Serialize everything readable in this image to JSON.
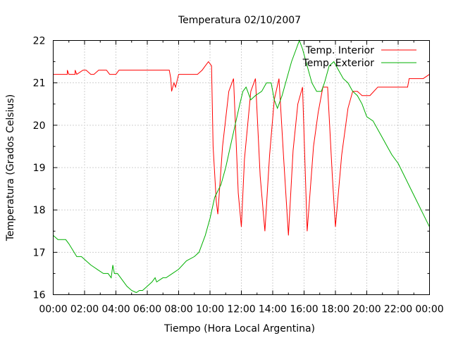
{
  "chart_data": {
    "type": "line",
    "title": "Temperatura 02/10/2007",
    "xlabel": "Tiempo (Hora Local Argentina)",
    "ylabel": "Temperatura (Grados Celsius)",
    "xlim": [
      0,
      24
    ],
    "ylim": [
      16,
      22
    ],
    "xtick_labels": [
      "00:00",
      "02:00",
      "04:00",
      "06:00",
      "08:00",
      "10:00",
      "12:00",
      "14:00",
      "16:00",
      "18:00",
      "20:00",
      "22:00",
      "00:00"
    ],
    "ytick_labels": [
      "16",
      "17",
      "18",
      "19",
      "20",
      "21",
      "22"
    ],
    "grid": true,
    "legend_position": "top-right",
    "series": [
      {
        "name": "Temp. Interior",
        "color": "#ff0000",
        "x": [
          0,
          0.9,
          0.9,
          1.0,
          1.4,
          1.4,
          1.5,
          1.9,
          2.1,
          2.4,
          2.6,
          2.9,
          3.4,
          3.6,
          4.0,
          4.2,
          7.4,
          7.5,
          7.55,
          7.7,
          7.8,
          8.0,
          9.2,
          9.5,
          9.7,
          9.9,
          10.1,
          10.2,
          10.4,
          10.5,
          10.8,
          11.2,
          11.5,
          11.8,
          12.0,
          12.2,
          12.6,
          12.9,
          13.2,
          13.5,
          13.8,
          14.1,
          14.4,
          14.7,
          15.0,
          15.3,
          15.6,
          15.9,
          16.2,
          16.6,
          16.9,
          17.2,
          17.5,
          17.8,
          18.0,
          18.4,
          18.8,
          19.1,
          19.4,
          19.7,
          20.2,
          20.7,
          21.2,
          21.6,
          22.0,
          22.6,
          22.7,
          22.9,
          23.6,
          24.0
        ],
        "y": [
          21.2,
          21.2,
          21.3,
          21.2,
          21.2,
          21.3,
          21.2,
          21.3,
          21.3,
          21.2,
          21.2,
          21.3,
          21.3,
          21.2,
          21.2,
          21.3,
          21.3,
          21.1,
          20.8,
          21.0,
          20.9,
          21.2,
          21.2,
          21.3,
          21.4,
          21.5,
          21.4,
          19.5,
          18.2,
          17.9,
          19.5,
          20.8,
          21.1,
          18.4,
          17.6,
          19.2,
          20.8,
          21.1,
          18.8,
          17.5,
          19.3,
          20.6,
          21.1,
          19.2,
          17.4,
          19.4,
          20.5,
          20.9,
          17.5,
          19.5,
          20.3,
          20.9,
          20.9,
          18.8,
          17.6,
          19.3,
          20.4,
          20.8,
          20.8,
          20.7,
          20.7,
          20.9,
          20.9,
          20.9,
          20.9,
          20.9,
          21.1,
          21.1,
          21.1,
          21.2
        ]
      },
      {
        "name": "Temp. Exterior",
        "color": "#00b000",
        "x": [
          0,
          0.3,
          0.4,
          0.8,
          1.0,
          1.5,
          1.8,
          2.1,
          2.4,
          2.8,
          3.2,
          3.5,
          3.7,
          3.8,
          3.9,
          4.1,
          4.3,
          4.5,
          4.7,
          5.0,
          5.3,
          5.5,
          5.7,
          6.0,
          6.3,
          6.5,
          6.6,
          7.0,
          7.2,
          7.6,
          8.0,
          8.5,
          9.0,
          9.3,
          9.7,
          10.0,
          10.3,
          10.7,
          11.0,
          11.3,
          11.6,
          11.9,
          12.1,
          12.3,
          12.6,
          12.9,
          13.3,
          13.6,
          13.9,
          14.1,
          14.3,
          14.6,
          14.9,
          15.2,
          15.5,
          15.7,
          15.9,
          16.2,
          16.5,
          16.8,
          17.1,
          17.3,
          17.6,
          17.9,
          18.2,
          18.5,
          18.8,
          19.1,
          19.4,
          19.7,
          20.0,
          20.4,
          20.7,
          21.0,
          21.3,
          21.6,
          22.0,
          22.4,
          22.8,
          23.2,
          23.6,
          24.0
        ],
        "y": [
          17.4,
          17.3,
          17.3,
          17.3,
          17.2,
          16.9,
          16.9,
          16.8,
          16.7,
          16.6,
          16.5,
          16.5,
          16.4,
          16.7,
          16.5,
          16.5,
          16.4,
          16.3,
          16.2,
          16.1,
          16.05,
          16.1,
          16.1,
          16.2,
          16.3,
          16.4,
          16.3,
          16.4,
          16.4,
          16.5,
          16.6,
          16.8,
          16.9,
          17.0,
          17.4,
          17.8,
          18.3,
          18.6,
          19.0,
          19.5,
          20.0,
          20.5,
          20.8,
          20.9,
          20.6,
          20.7,
          20.8,
          21.0,
          21.0,
          20.6,
          20.4,
          20.7,
          21.1,
          21.5,
          21.8,
          22.0,
          21.8,
          21.4,
          21.0,
          20.8,
          20.8,
          21.0,
          21.4,
          21.5,
          21.3,
          21.1,
          21.0,
          20.8,
          20.7,
          20.5,
          20.2,
          20.1,
          19.9,
          19.7,
          19.5,
          19.3,
          19.1,
          18.8,
          18.5,
          18.2,
          17.9,
          17.6
        ]
      }
    ]
  }
}
